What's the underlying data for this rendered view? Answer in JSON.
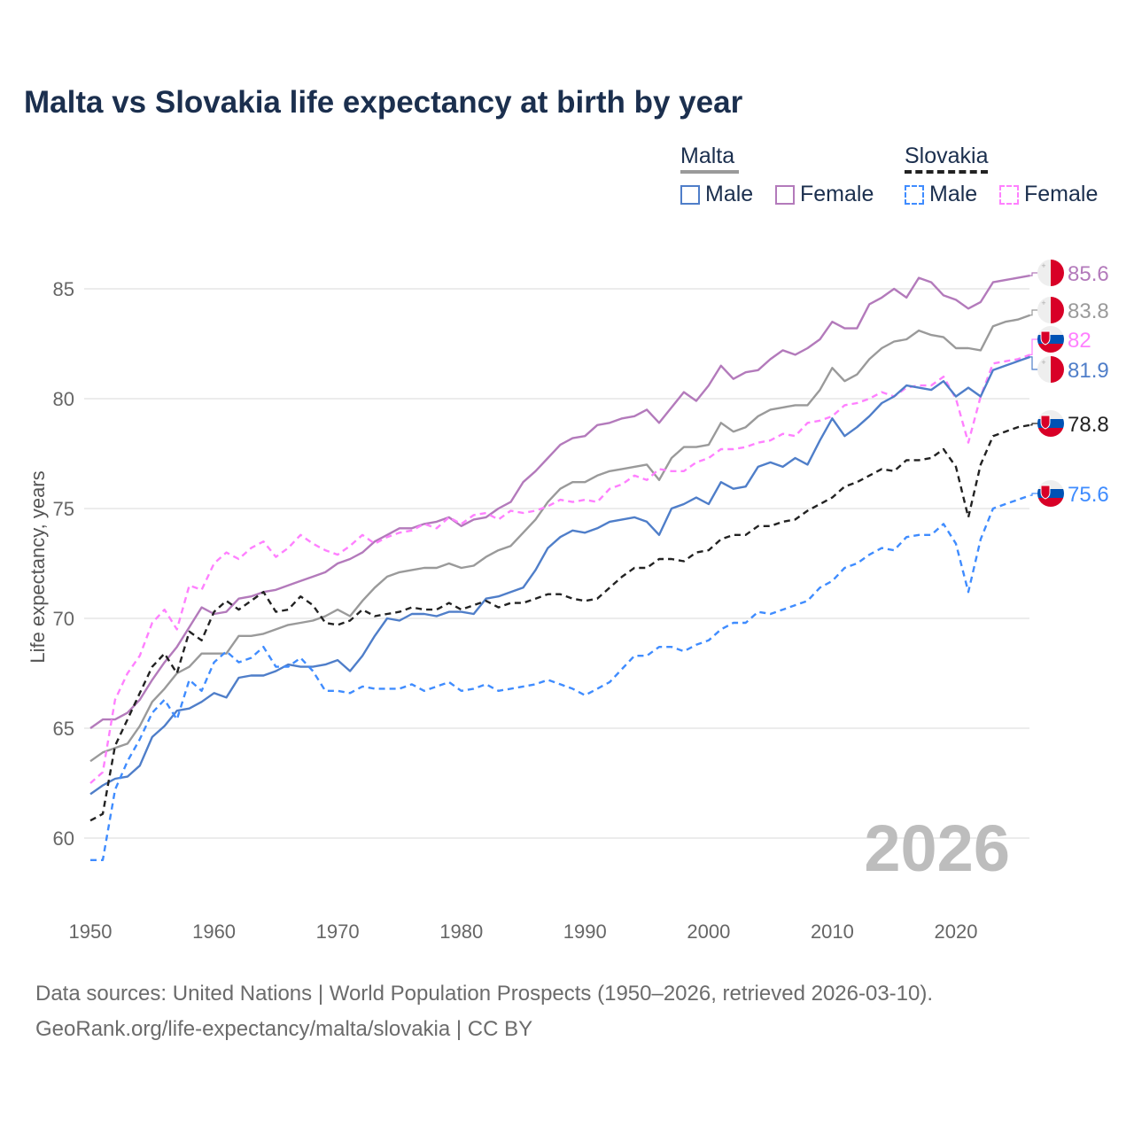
{
  "title": "Malta vs Slovakia life expectancy at birth by year",
  "legend": {
    "groups": [
      {
        "name": "Malta",
        "items": [
          "Male",
          "Female"
        ]
      },
      {
        "name": "Slovakia",
        "items": [
          "Male",
          "Female"
        ]
      }
    ]
  },
  "footer": {
    "line1": "Data sources: United Nations | World Population Prospects (1950–2026, retrieved 2026-03-10).",
    "line2": "GeoRank.org/life-expectancy/malta/slovakia | CC BY"
  },
  "chart_data": {
    "type": "line",
    "title": "Malta vs Slovakia life expectancy at birth by year",
    "xlabel": "",
    "ylabel": "Life expectancy, years",
    "xlim": [
      1950,
      2026
    ],
    "ylim": [
      58,
      87
    ],
    "x_ticks": [
      1950,
      1960,
      1970,
      1980,
      1990,
      2000,
      2010,
      2020
    ],
    "y_ticks": [
      60,
      65,
      70,
      75,
      80,
      85
    ],
    "grid": true,
    "year_watermark": "2026",
    "x_start": 1950,
    "series": [
      {
        "name": "Malta Female",
        "country": "Malta",
        "sex": "Female",
        "color": "#b37abb",
        "dashed": false,
        "end_label": "85.6",
        "values": [
          65.0,
          65.4,
          65.4,
          65.7,
          66.3,
          67.2,
          68.0,
          68.7,
          69.6,
          70.5,
          70.2,
          70.3,
          70.9,
          71.0,
          71.2,
          71.3,
          71.5,
          71.7,
          71.9,
          72.1,
          72.5,
          72.7,
          73.0,
          73.5,
          73.8,
          74.1,
          74.1,
          74.3,
          74.4,
          74.6,
          74.2,
          74.5,
          74.6,
          75.0,
          75.3,
          76.2,
          76.7,
          77.3,
          77.9,
          78.2,
          78.3,
          78.8,
          78.9,
          79.1,
          79.2,
          79.5,
          78.9,
          79.6,
          80.3,
          79.9,
          80.6,
          81.5,
          80.9,
          81.2,
          81.3,
          81.8,
          82.2,
          82.0,
          82.3,
          82.7,
          83.5,
          83.2,
          83.2,
          84.3,
          84.6,
          85.0,
          84.6,
          85.5,
          85.3,
          84.7,
          84.5,
          84.1,
          84.4,
          85.3,
          85.4,
          85.5,
          85.6
        ]
      },
      {
        "name": "Malta",
        "country": "Malta",
        "sex": "Total",
        "color": "#9a9a9a",
        "dashed": false,
        "end_label": "83.8",
        "values": [
          63.5,
          63.9,
          64.1,
          64.3,
          65.1,
          66.2,
          66.8,
          67.5,
          67.8,
          68.4,
          68.4,
          68.4,
          69.2,
          69.2,
          69.3,
          69.5,
          69.7,
          69.8,
          69.9,
          70.1,
          70.4,
          70.1,
          70.8,
          71.4,
          71.9,
          72.1,
          72.2,
          72.3,
          72.3,
          72.5,
          72.3,
          72.4,
          72.8,
          73.1,
          73.3,
          73.9,
          74.5,
          75.3,
          75.9,
          76.2,
          76.2,
          76.5,
          76.7,
          76.8,
          76.9,
          77.0,
          76.3,
          77.3,
          77.8,
          77.8,
          77.9,
          78.9,
          78.5,
          78.7,
          79.2,
          79.5,
          79.6,
          79.7,
          79.7,
          80.4,
          81.4,
          80.8,
          81.1,
          81.8,
          82.3,
          82.6,
          82.7,
          83.1,
          82.9,
          82.8,
          82.3,
          82.3,
          82.2,
          83.3,
          83.5,
          83.6,
          83.8
        ]
      },
      {
        "name": "Slovakia Female",
        "country": "Slovakia",
        "sex": "Female",
        "color": "#ff80ff",
        "dashed": true,
        "end_label": "82",
        "values": [
          62.5,
          63.0,
          66.3,
          67.5,
          68.3,
          69.8,
          70.4,
          69.5,
          71.5,
          71.3,
          72.5,
          73.0,
          72.7,
          73.2,
          73.5,
          72.8,
          73.2,
          73.8,
          73.4,
          73.1,
          72.9,
          73.3,
          73.8,
          73.4,
          73.7,
          73.9,
          74.0,
          74.3,
          74.1,
          74.6,
          74.3,
          74.7,
          74.8,
          74.5,
          74.9,
          74.8,
          74.9,
          75.1,
          75.4,
          75.3,
          75.4,
          75.3,
          75.9,
          76.1,
          76.5,
          76.3,
          76.8,
          76.7,
          76.7,
          77.1,
          77.3,
          77.7,
          77.7,
          77.8,
          78.0,
          78.1,
          78.4,
          78.3,
          78.9,
          79.0,
          79.2,
          79.7,
          79.8,
          80.0,
          80.3,
          80.1,
          80.5,
          80.6,
          80.6,
          81.0,
          80.0,
          78.0,
          80.1,
          81.6,
          81.7,
          81.8,
          82.0
        ]
      },
      {
        "name": "Malta Male",
        "country": "Malta",
        "sex": "Male",
        "color": "#4f7ec9",
        "dashed": false,
        "end_label": "81.9",
        "values": [
          62.0,
          62.4,
          62.7,
          62.8,
          63.3,
          64.6,
          65.1,
          65.8,
          65.9,
          66.2,
          66.6,
          66.4,
          67.3,
          67.4,
          67.4,
          67.6,
          67.9,
          67.8,
          67.8,
          67.9,
          68.1,
          67.6,
          68.3,
          69.2,
          70.0,
          69.9,
          70.2,
          70.2,
          70.1,
          70.3,
          70.3,
          70.2,
          70.9,
          71.0,
          71.2,
          71.4,
          72.2,
          73.2,
          73.7,
          74.0,
          73.9,
          74.1,
          74.4,
          74.5,
          74.6,
          74.4,
          73.8,
          75.0,
          75.2,
          75.5,
          75.2,
          76.2,
          75.9,
          76.0,
          76.9,
          77.1,
          76.9,
          77.3,
          77.0,
          78.1,
          79.1,
          78.3,
          78.7,
          79.2,
          79.8,
          80.1,
          80.6,
          80.5,
          80.4,
          80.8,
          80.1,
          80.5,
          80.1,
          81.3,
          81.5,
          81.7,
          81.9
        ]
      },
      {
        "name": "Slovakia",
        "country": "Slovakia",
        "sex": "Total",
        "color": "#222222",
        "dashed": true,
        "end_label": "78.8",
        "values": [
          60.8,
          61.1,
          64.2,
          65.4,
          66.6,
          67.8,
          68.4,
          67.5,
          69.4,
          69.0,
          70.3,
          70.8,
          70.4,
          70.8,
          71.2,
          70.3,
          70.4,
          71.0,
          70.6,
          69.8,
          69.7,
          69.9,
          70.4,
          70.1,
          70.2,
          70.3,
          70.5,
          70.4,
          70.4,
          70.7,
          70.4,
          70.6,
          70.8,
          70.5,
          70.7,
          70.7,
          70.9,
          71.1,
          71.1,
          70.9,
          70.8,
          70.9,
          71.4,
          71.9,
          72.3,
          72.3,
          72.7,
          72.7,
          72.6,
          73.0,
          73.1,
          73.6,
          73.8,
          73.8,
          74.2,
          74.2,
          74.4,
          74.5,
          74.9,
          75.2,
          75.5,
          76.0,
          76.2,
          76.5,
          76.8,
          76.7,
          77.2,
          77.2,
          77.3,
          77.7,
          76.9,
          74.6,
          77.0,
          78.3,
          78.5,
          78.7,
          78.8
        ]
      },
      {
        "name": "Slovakia Male",
        "country": "Slovakia",
        "sex": "Male",
        "color": "#3f8cff",
        "dashed": true,
        "end_label": "75.6",
        "values": [
          59.0,
          59.0,
          62.2,
          63.5,
          64.5,
          65.7,
          66.3,
          65.4,
          67.2,
          66.7,
          68.0,
          68.5,
          68.0,
          68.2,
          68.7,
          67.8,
          67.8,
          68.2,
          67.6,
          66.7,
          66.7,
          66.6,
          66.9,
          66.8,
          66.8,
          66.8,
          67.0,
          66.7,
          66.9,
          67.1,
          66.7,
          66.8,
          67.0,
          66.7,
          66.8,
          66.9,
          67.0,
          67.2,
          67.0,
          66.8,
          66.5,
          66.8,
          67.1,
          67.7,
          68.3,
          68.3,
          68.7,
          68.7,
          68.5,
          68.8,
          69.0,
          69.5,
          69.8,
          69.8,
          70.3,
          70.2,
          70.4,
          70.6,
          70.8,
          71.4,
          71.7,
          72.3,
          72.5,
          72.9,
          73.2,
          73.1,
          73.7,
          73.8,
          73.8,
          74.3,
          73.4,
          71.2,
          73.6,
          75.0,
          75.2,
          75.4,
          75.6
        ]
      }
    ]
  }
}
